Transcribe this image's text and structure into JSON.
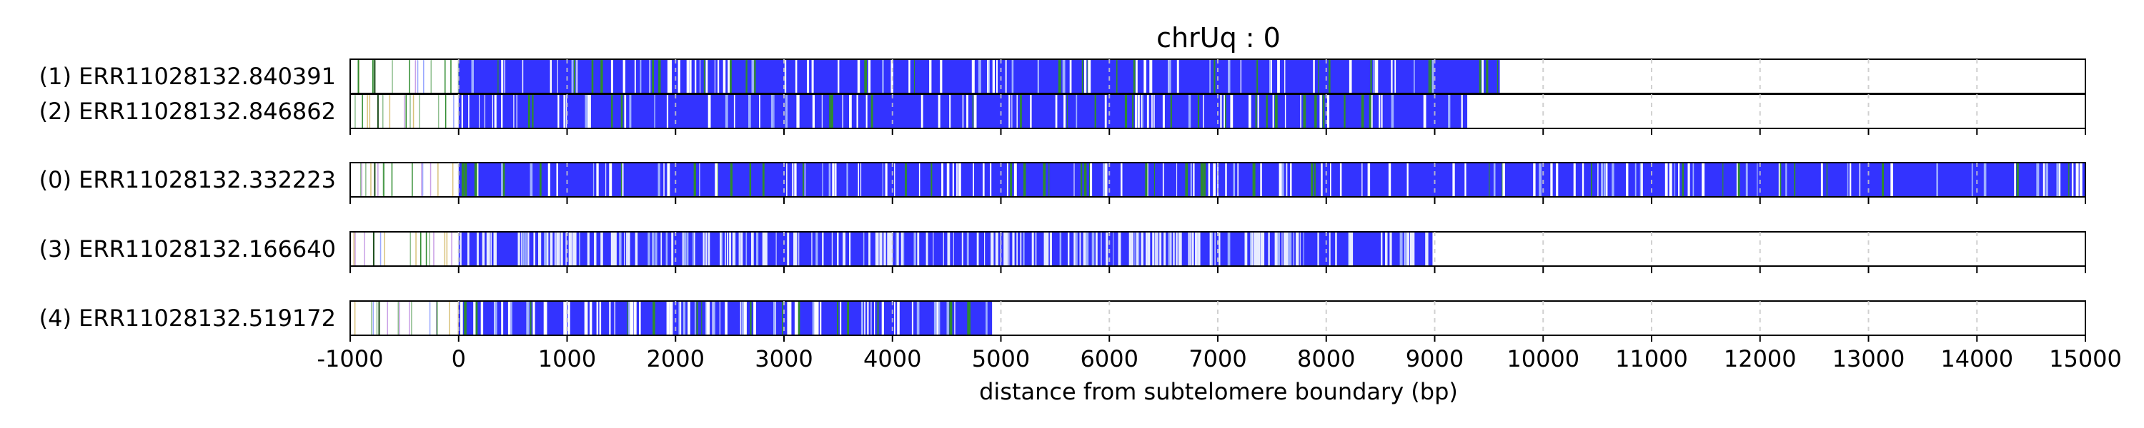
{
  "chart_data": {
    "type": "bar",
    "title": "chrUq : 0",
    "xlabel": "distance from subtelomere boundary (bp)",
    "ylabel": "",
    "xlim": [
      -1000,
      15000
    ],
    "xticks": [
      -1000,
      0,
      1000,
      2000,
      3000,
      4000,
      5000,
      6000,
      7000,
      8000,
      9000,
      10000,
      11000,
      12000,
      13000,
      14000,
      15000
    ],
    "tick_labels": [
      "-1000",
      "0",
      "1000",
      "2000",
      "3000",
      "4000",
      "5000",
      "6000",
      "7000",
      "8000",
      "9000",
      "10000",
      "11000",
      "12000",
      "13000",
      "14000",
      "15000"
    ],
    "grid": "vertical dashed",
    "colors": {
      "repeat": "#3333ff",
      "variant": "#2e8b2e",
      "gap": "#ffffff",
      "grid": "#c8c8c8",
      "frame": "#000000"
    },
    "reads": [
      {
        "label": "(1) ERR11028132.840391",
        "end": 9600,
        "group": 0
      },
      {
        "label": "(2) ERR11028132.846862",
        "end": 9300,
        "group": 0
      },
      {
        "label": "(0) ERR11028132.332223",
        "end": 15000,
        "group": 1
      },
      {
        "label": "(3) ERR11028132.166640",
        "end": 8980,
        "group": 2
      },
      {
        "label": "(4) ERR11028132.519172",
        "end": 4920,
        "group": 3
      }
    ]
  }
}
